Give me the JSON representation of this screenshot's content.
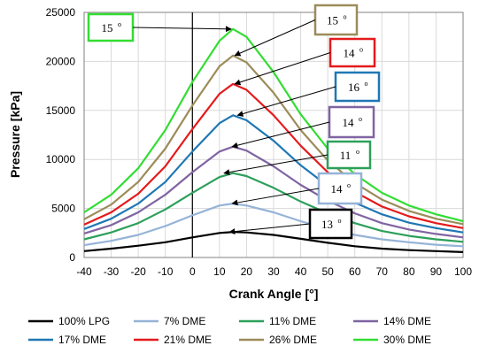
{
  "chart_data": {
    "type": "line",
    "title": "",
    "xlabel": "Crank Angle [°]",
    "ylabel": "Pressure [kPa]",
    "xlim": [
      -40,
      100
    ],
    "ylim": [
      0,
      25000
    ],
    "xticks": [
      -40,
      -30,
      -20,
      -10,
      0,
      10,
      20,
      30,
      40,
      50,
      60,
      70,
      80,
      90,
      100
    ],
    "yticks": [
      0,
      5000,
      10000,
      15000,
      20000,
      25000
    ],
    "grid": true,
    "legend_position": "bottom",
    "x": [
      -40,
      -30,
      -20,
      -10,
      0,
      10,
      15,
      20,
      30,
      40,
      50,
      60,
      70,
      80,
      90,
      100
    ],
    "series": [
      {
        "name": "100% LPG",
        "color": "#000000",
        "values": [
          650,
          900,
          1200,
          1550,
          2050,
          2500,
          2600,
          2550,
          2300,
          1900,
          1500,
          1150,
          900,
          750,
          650,
          550
        ]
      },
      {
        "name": "7% DME",
        "color": "#95b3d7",
        "values": [
          1250,
          1700,
          2300,
          3200,
          4300,
          5300,
          5500,
          5300,
          4600,
          3700,
          2900,
          2300,
          1850,
          1550,
          1300,
          1150
        ]
      },
      {
        "name": "11% DME",
        "color": "#2ca05a",
        "values": [
          1850,
          2550,
          3500,
          4900,
          6600,
          8200,
          8600,
          8300,
          7100,
          5700,
          4500,
          3500,
          2700,
          2200,
          1850,
          1600
        ]
      },
      {
        "name": "14% DME",
        "color": "#8064a2",
        "values": [
          2450,
          3300,
          4600,
          6400,
          8700,
          10800,
          11300,
          10900,
          9300,
          7400,
          5800,
          4500,
          3500,
          2850,
          2400,
          2050
        ]
      },
      {
        "name": "17% DME",
        "color": "#1f77b4",
        "values": [
          2900,
          3950,
          5500,
          7700,
          10800,
          13700,
          14500,
          14000,
          11900,
          9400,
          7300,
          5600,
          4400,
          3550,
          3000,
          2550
        ]
      },
      {
        "name": "21% DME",
        "color": "#e41a1c",
        "values": [
          3350,
          4600,
          6500,
          9300,
          13100,
          16700,
          17700,
          17100,
          14500,
          11400,
          8700,
          6700,
          5200,
          4200,
          3500,
          3000
        ]
      },
      {
        "name": "26% DME",
        "color": "#9c8c5a",
        "values": [
          3900,
          5400,
          7700,
          11100,
          15500,
          19500,
          20600,
          19900,
          16800,
          13000,
          9900,
          7600,
          5900,
          4750,
          3950,
          3400
        ]
      },
      {
        "name": "30% DME",
        "color": "#33dd33",
        "values": [
          4600,
          6400,
          9100,
          13000,
          17900,
          22100,
          23300,
          22500,
          18900,
          14600,
          11100,
          8500,
          6600,
          5300,
          4400,
          3700
        ]
      }
    ],
    "annotations": [
      {
        "label": "15",
        "sup": "o",
        "color": "#33dd33",
        "target_x": 15,
        "target_y": 23300
      },
      {
        "label": "15",
        "sup": "o",
        "color": "#9c8c5a",
        "target_x": 15,
        "target_y": 20600
      },
      {
        "label": "14",
        "sup": "o",
        "color": "#e41a1c",
        "target_x": 15,
        "target_y": 17700
      },
      {
        "label": "16",
        "sup": "o",
        "color": "#1f77b4",
        "target_x": 16,
        "target_y": 14500
      },
      {
        "label": "14",
        "sup": "o",
        "color": "#8064a2",
        "target_x": 14,
        "target_y": 11300
      },
      {
        "label": "11",
        "sup": "o",
        "color": "#2ca05a",
        "target_x": 11,
        "target_y": 8600
      },
      {
        "label": "14",
        "sup": "o",
        "color": "#95b3d7",
        "target_x": 14,
        "target_y": 5500
      },
      {
        "label": "13",
        "sup": "o",
        "color": "#000000",
        "target_x": 13,
        "target_y": 2600
      }
    ]
  }
}
